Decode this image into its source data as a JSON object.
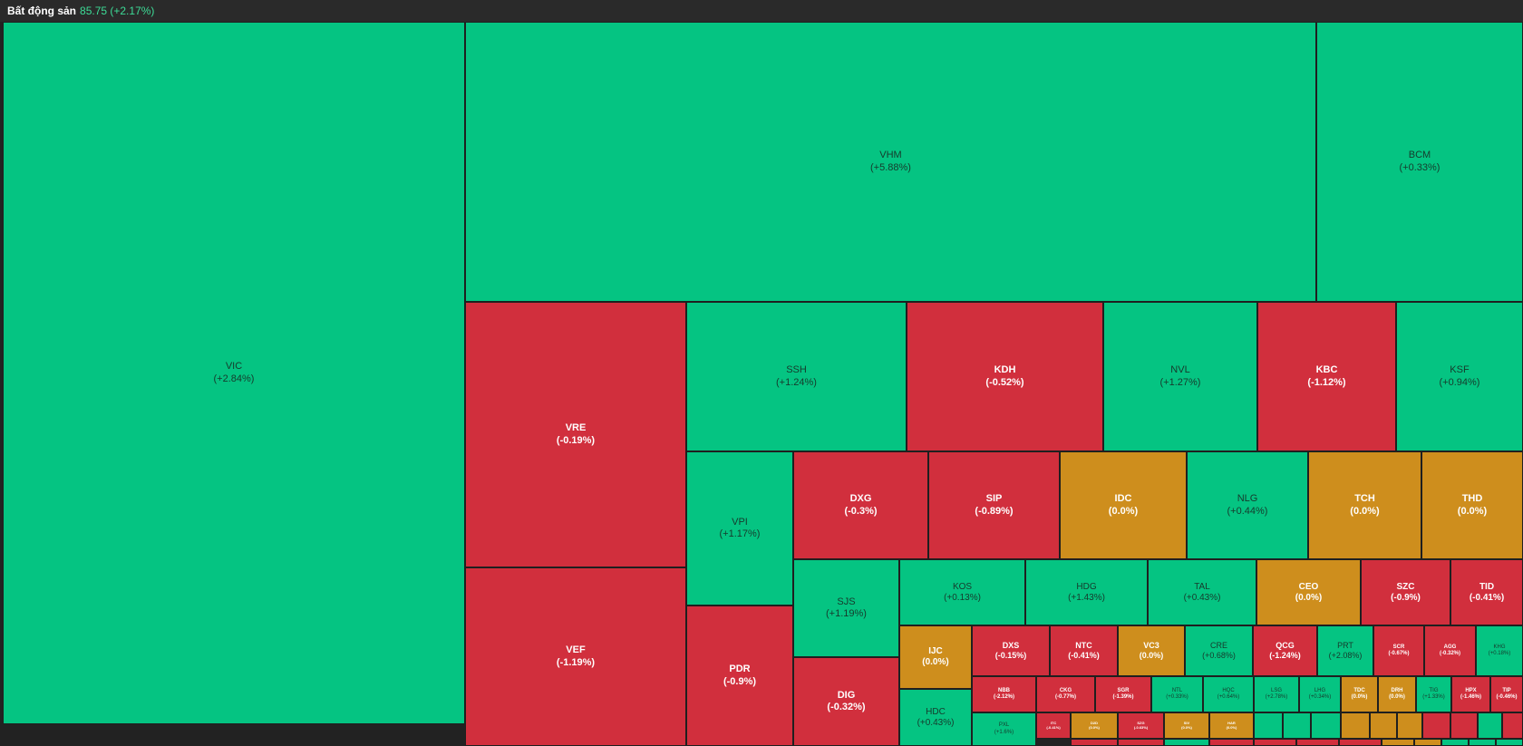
{
  "header": {
    "title": "Bất động sản",
    "value": "85.75 (+2.17%)"
  },
  "colors": {
    "up": "#05c482",
    "down": "#d12f3d",
    "flat": "#ce8e1d"
  },
  "tiles": [
    {
      "symbol": "VIC",
      "change": "(+2.84%)",
      "status": "up"
    },
    {
      "symbol": "VHM",
      "change": "(+5.88%)",
      "status": "up"
    },
    {
      "symbol": "BCM",
      "change": "(+0.33%)",
      "status": "up"
    },
    {
      "symbol": "VRE",
      "change": "(-0.19%)",
      "status": "down"
    },
    {
      "symbol": "VEF",
      "change": "(-1.19%)",
      "status": "down"
    },
    {
      "symbol": "SSH",
      "change": "(+1.24%)",
      "status": "up"
    },
    {
      "symbol": "KDH",
      "change": "(-0.52%)",
      "status": "down"
    },
    {
      "symbol": "NVL",
      "change": "(+1.27%)",
      "status": "up"
    },
    {
      "symbol": "KBC",
      "change": "(-1.12%)",
      "status": "down"
    },
    {
      "symbol": "KSF",
      "change": "(+0.94%)",
      "status": "up"
    },
    {
      "symbol": "VPI",
      "change": "(+1.17%)",
      "status": "up"
    },
    {
      "symbol": "PDR",
      "change": "(-0.9%)",
      "status": "down"
    },
    {
      "symbol": "DXG",
      "change": "(-0.3%)",
      "status": "down"
    },
    {
      "symbol": "SIP",
      "change": "(-0.89%)",
      "status": "down"
    },
    {
      "symbol": "IDC",
      "change": "(0.0%)",
      "status": "flat"
    },
    {
      "symbol": "NLG",
      "change": "(+0.44%)",
      "status": "up"
    },
    {
      "symbol": "TCH",
      "change": "(0.0%)",
      "status": "flat"
    },
    {
      "symbol": "THD",
      "change": "(0.0%)",
      "status": "flat"
    },
    {
      "symbol": "SJS",
      "change": "(+1.19%)",
      "status": "up"
    },
    {
      "symbol": "DIG",
      "change": "(-0.32%)",
      "status": "down"
    },
    {
      "symbol": "KOS",
      "change": "(+0.13%)",
      "status": "up"
    },
    {
      "symbol": "HDG",
      "change": "(+1.43%)",
      "status": "up"
    },
    {
      "symbol": "TAL",
      "change": "(+0.43%)",
      "status": "up"
    },
    {
      "symbol": "CEO",
      "change": "(0.0%)",
      "status": "flat"
    },
    {
      "symbol": "SZC",
      "change": "(-0.9%)",
      "status": "down"
    },
    {
      "symbol": "TID",
      "change": "(-0.41%)",
      "status": "down"
    },
    {
      "symbol": "IJC",
      "change": "(0.0%)",
      "status": "flat"
    },
    {
      "symbol": "DXS",
      "change": "(-0.15%)",
      "status": "down"
    },
    {
      "symbol": "NTC",
      "change": "(-0.41%)",
      "status": "down"
    },
    {
      "symbol": "VC3",
      "change": "(0.0%)",
      "status": "flat"
    },
    {
      "symbol": "CRE",
      "change": "(+0.68%)",
      "status": "up"
    },
    {
      "symbol": "QCG",
      "change": "(-1.24%)",
      "status": "down"
    },
    {
      "symbol": "PRT",
      "change": "(+2.08%)",
      "status": "up"
    },
    {
      "symbol": "SCR",
      "change": "(-0.67%)",
      "status": "down"
    },
    {
      "symbol": "AGG",
      "change": "(-0.32%)",
      "status": "down"
    },
    {
      "symbol": "KHG",
      "change": "(+0.18%)",
      "status": "up"
    },
    {
      "symbol": "HDC",
      "change": "(+0.43%)",
      "status": "up"
    },
    {
      "symbol": "NBB",
      "change": "(-2.12%)",
      "status": "down"
    },
    {
      "symbol": "CKG",
      "change": "(-0.77%)",
      "status": "down"
    },
    {
      "symbol": "SGR",
      "change": "(-1.39%)",
      "status": "down"
    },
    {
      "symbol": "NTL",
      "change": "(+0.33%)",
      "status": "up"
    },
    {
      "symbol": "HQC",
      "change": "(+0.64%)",
      "status": "up"
    },
    {
      "symbol": "LSG",
      "change": "(+2.78%)",
      "status": "up"
    },
    {
      "symbol": "LHG",
      "change": "(+0.34%)",
      "status": "up"
    },
    {
      "symbol": "TDC",
      "change": "(0.0%)",
      "status": "flat"
    },
    {
      "symbol": "DRH",
      "change": "(0.0%)",
      "status": "flat"
    },
    {
      "symbol": "TIG",
      "change": "(+1.33%)",
      "status": "up"
    },
    {
      "symbol": "HPX",
      "change": "(-1.46%)",
      "status": "down"
    },
    {
      "symbol": "TIP",
      "change": "(-0.46%)",
      "status": "down"
    },
    {
      "symbol": "PXL",
      "change": "(+1.6%)",
      "status": "up"
    },
    {
      "symbol": "ITC",
      "change": "(-0.41%)",
      "status": "down"
    },
    {
      "symbol": "D2D",
      "change": "(0.0%)",
      "status": "flat"
    },
    {
      "symbol": "SZG",
      "change": "(-0.63%)",
      "status": "down"
    },
    {
      "symbol": "SIV",
      "change": "(0.0%)",
      "status": "flat"
    },
    {
      "symbol": "HAR",
      "change": "(0.0%)",
      "status": "flat"
    },
    {
      "symbol": "",
      "change": "",
      "status": "up"
    },
    {
      "symbol": "",
      "change": "",
      "status": "up"
    },
    {
      "symbol": "",
      "change": "",
      "status": "up"
    },
    {
      "symbol": "",
      "change": "",
      "status": "flat"
    },
    {
      "symbol": "",
      "change": "",
      "status": "flat"
    },
    {
      "symbol": "",
      "change": "",
      "status": "flat"
    },
    {
      "symbol": "",
      "change": "",
      "status": "down"
    },
    {
      "symbol": "",
      "change": "",
      "status": "down"
    },
    {
      "symbol": "",
      "change": "",
      "status": "up"
    },
    {
      "symbol": "",
      "change": "",
      "status": "down"
    },
    {
      "symbol": "",
      "change": "",
      "status": "down"
    },
    {
      "symbol": "",
      "change": "",
      "status": "down"
    },
    {
      "symbol": "",
      "change": "",
      "status": "up"
    },
    {
      "symbol": "",
      "change": "",
      "status": "down"
    },
    {
      "symbol": "",
      "change": "",
      "status": "down"
    },
    {
      "symbol": "",
      "change": "",
      "status": "down"
    },
    {
      "symbol": "",
      "change": "",
      "status": "down"
    },
    {
      "symbol": "",
      "change": "",
      "status": "flat"
    },
    {
      "symbol": "",
      "change": "",
      "status": "flat"
    },
    {
      "symbol": "",
      "change": "",
      "status": "up"
    },
    {
      "symbol": "",
      "change": "",
      "status": "up"
    },
    {
      "symbol": "",
      "change": "",
      "status": "up"
    },
    {
      "symbol": "",
      "change": "",
      "status": "up"
    }
  ]
}
